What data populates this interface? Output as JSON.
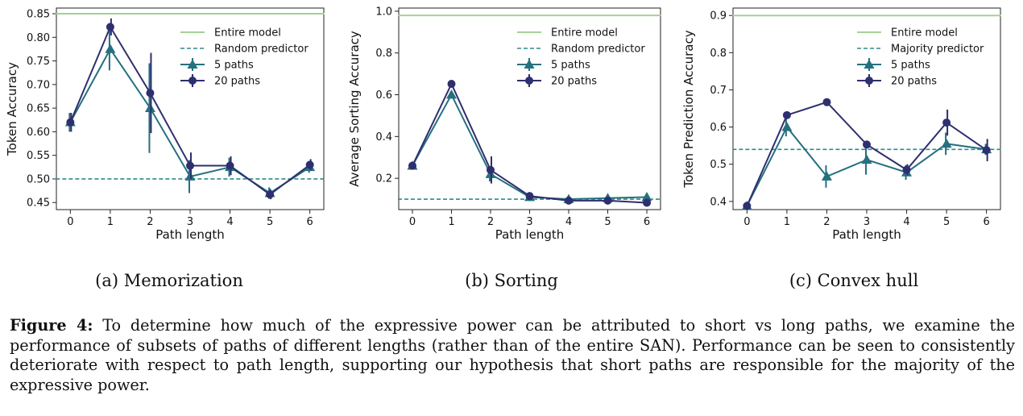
{
  "figure": {
    "caption_label": "Figure 4:",
    "caption_text": "To determine how much of the expressive power can be attributed to short vs long paths, we examine the performance of subsets of paths of different lengths (rather than of the entire SAN). Performance can be seen to consistently deteriorate with respect to path length, supporting our hypothesis that short paths are responsible for the majority of the expressive power."
  },
  "colors": {
    "entire": "#a6d096",
    "baseline": "#2f8a8a",
    "five": "#25707f",
    "twenty": "#2e2f6e"
  },
  "chart_data": [
    {
      "type": "line",
      "subcaption": "(a) Memorization",
      "xlabel": "Path length",
      "ylabel": "Token Accuracy",
      "x": [
        0,
        1,
        2,
        3,
        4,
        5,
        6
      ],
      "xlim": [
        -0.35,
        6.35
      ],
      "ylim": [
        0.435,
        0.862
      ],
      "yticks": [
        0.45,
        0.5,
        0.55,
        0.6,
        0.65,
        0.7,
        0.75,
        0.8,
        0.85
      ],
      "ytick_labels": [
        "0.45",
        "0.50",
        "0.55",
        "0.60",
        "0.65",
        "0.70",
        "0.75",
        "0.80",
        "0.85"
      ],
      "xticks": [
        0,
        1,
        2,
        3,
        4,
        5,
        6
      ],
      "reference_lines": [
        {
          "name": "Entire model",
          "value": 0.85,
          "style": "solid"
        },
        {
          "name": "Random predictor",
          "value": 0.5,
          "style": "dashed"
        }
      ],
      "series": [
        {
          "name": "5 paths",
          "marker": "triangle",
          "values": [
            0.62,
            0.775,
            0.65,
            0.505,
            0.525,
            0.47,
            0.525
          ],
          "errors": [
            0.02,
            0.045,
            0.095,
            0.035,
            0.02,
            0.012,
            0.012
          ]
        },
        {
          "name": "20 paths",
          "marker": "circle",
          "values": [
            0.62,
            0.822,
            0.682,
            0.528,
            0.528,
            0.467,
            0.53
          ],
          "errors": [
            0.02,
            0.018,
            0.085,
            0.028,
            0.02,
            0.01,
            0.012
          ]
        }
      ],
      "legend": "top-right"
    },
    {
      "type": "line",
      "subcaption": "(b) Sorting",
      "xlabel": "Path length",
      "ylabel": "Average Sorting Accuracy",
      "x": [
        0,
        1,
        2,
        3,
        4,
        5,
        6
      ],
      "xlim": [
        -0.35,
        6.35
      ],
      "ylim": [
        0.05,
        1.015
      ],
      "yticks": [
        0.2,
        0.4,
        0.6,
        0.8,
        1.0
      ],
      "ytick_labels": [
        "0.2",
        "0.4",
        "0.6",
        "0.8",
        "1.0"
      ],
      "xticks": [
        0,
        1,
        2,
        3,
        4,
        5,
        6
      ],
      "reference_lines": [
        {
          "name": "Entire model",
          "value": 0.98,
          "style": "solid"
        },
        {
          "name": "Random predictor",
          "value": 0.1,
          "style": "dashed"
        }
      ],
      "series": [
        {
          "name": "5 paths",
          "marker": "triangle",
          "values": [
            0.26,
            0.6,
            0.22,
            0.11,
            0.1,
            0.105,
            0.11
          ],
          "errors": [
            0.01,
            0.015,
            0.035,
            0.012,
            0.008,
            0.008,
            0.008
          ]
        },
        {
          "name": "20 paths",
          "marker": "circle",
          "values": [
            0.26,
            0.652,
            0.24,
            0.115,
            0.093,
            0.093,
            0.083
          ],
          "errors": [
            0.01,
            0.01,
            0.065,
            0.012,
            0.008,
            0.006,
            0.006
          ]
        }
      ],
      "legend": "top-right"
    },
    {
      "type": "line",
      "subcaption": "(c) Convex hull",
      "xlabel": "Path length",
      "ylabel": "Token Prediction Accuracy",
      "x": [
        0,
        1,
        2,
        3,
        4,
        5,
        6
      ],
      "xlim": [
        -0.35,
        6.35
      ],
      "ylim": [
        0.378,
        0.92
      ],
      "yticks": [
        0.4,
        0.5,
        0.6,
        0.7,
        0.8,
        0.9
      ],
      "ytick_labels": [
        "0.4",
        "0.5",
        "0.6",
        "0.7",
        "0.8",
        "0.9"
      ],
      "xticks": [
        0,
        1,
        2,
        3,
        4,
        5,
        6
      ],
      "reference_lines": [
        {
          "name": "Entire model",
          "value": 0.9,
          "style": "solid"
        },
        {
          "name": "Majority predictor",
          "value": 0.54,
          "style": "dashed"
        }
      ],
      "series": [
        {
          "name": "5 paths",
          "marker": "triangle",
          "values": [
            0.388,
            0.6,
            0.467,
            0.512,
            0.478,
            0.555,
            0.54
          ],
          "errors": [
            0.005,
            0.025,
            0.03,
            0.04,
            0.02,
            0.03,
            0.015
          ]
        },
        {
          "name": "20 paths",
          "marker": "circle",
          "values": [
            0.388,
            0.632,
            0.667,
            0.553,
            0.485,
            0.612,
            0.538
          ],
          "errors": [
            0.005,
            0.008,
            0.006,
            0.01,
            0.015,
            0.035,
            0.03
          ]
        }
      ],
      "legend": "top-right"
    }
  ]
}
